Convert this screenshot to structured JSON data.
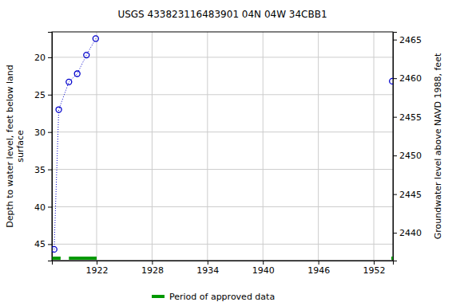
{
  "chart_data": {
    "type": "scatter",
    "title": "USGS 433823116483901 04N 04W 34CBB1",
    "ylabel": "Depth to water level, feet below land surface",
    "y2label": "Groundwater level above NAVD 1988, feet",
    "x": [
      1917.4,
      1917.9,
      1919.0,
      1919.9,
      1920.9,
      1921.9,
      null,
      1954.0
    ],
    "values": [
      45.7,
      27.0,
      23.3,
      22.2,
      19.7,
      17.5,
      null,
      23.2
    ],
    "color": "#0000cc",
    "marker": "circle",
    "line_style": "dotted",
    "xlim": [
      1917.16,
      1954.07
    ],
    "xticks": [
      1922,
      1928,
      1934,
      1940,
      1946,
      1952
    ],
    "ylim": [
      47.2,
      16.6
    ],
    "yticks": [
      20,
      25,
      30,
      35,
      40,
      45
    ],
    "y2lim": [
      2436.4,
      2466.0
    ],
    "y2ticks": [
      2440,
      2445,
      2450,
      2455,
      2460,
      2465
    ],
    "grid": true,
    "legend": "bottom",
    "approved_periods": {
      "name": "Period of approved data",
      "color": "#009900",
      "ranges": [
        [
          1917.2,
          1918.1
        ],
        [
          1919.0,
          1922.0
        ],
        [
          1953.9,
          1954.1
        ]
      ]
    }
  }
}
